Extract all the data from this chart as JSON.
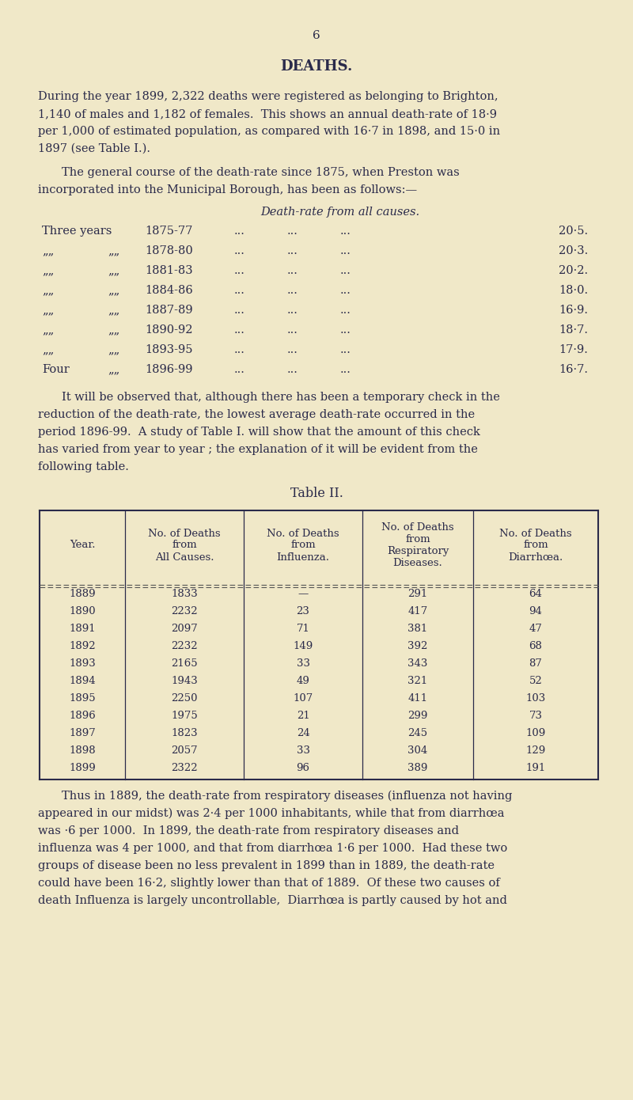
{
  "bg_color": "#f0e8c8",
  "text_color": "#2a2a4a",
  "page_number": "6",
  "title": "DEATHS.",
  "italic_header": "Death-rate from all causes.",
  "row_labels_1": [
    "Three years",
    "„„",
    "„„",
    "„„",
    "„„",
    "„„",
    "„„",
    "Four"
  ],
  "row_labels_2": [
    "",
    "„„",
    "„„",
    "„„",
    "„„",
    "„„",
    "„„",
    "„„"
  ],
  "row_periods": [
    "1875-77",
    "1878-80",
    "1881-83",
    "1884-86",
    "1887-89",
    "1890-92",
    "1893-95",
    "1896-99"
  ],
  "row_values": [
    "20·5.",
    "20·3.",
    "20·2.",
    "18·0.",
    "16·9.",
    "18·7.",
    "17·9.",
    "16·7."
  ],
  "table_title": "Table II.",
  "table_headers": [
    "Year.",
    "No. of Deaths\nfrom\nAll Causes.",
    "No. of Deaths\nfrom\nInfluenza.",
    "No. of Deaths\nfrom\nRespiratory\nDiseases.",
    "No. of Deaths\nfrom\nDiarrhœa."
  ],
  "table_data": [
    [
      "1889",
      "1833",
      "—",
      "291",
      "64"
    ],
    [
      "1890",
      "2232",
      "23",
      "417",
      "94"
    ],
    [
      "1891",
      "2097",
      "71",
      "381",
      "47"
    ],
    [
      "1892",
      "2232",
      "149",
      "392",
      "68"
    ],
    [
      "1893",
      "2165",
      "33",
      "343",
      "87"
    ],
    [
      "1894",
      "1943",
      "49",
      "321",
      "52"
    ],
    [
      "1895",
      "2250",
      "107",
      "411",
      "103"
    ],
    [
      "1896",
      "1975",
      "21",
      "299",
      "73"
    ],
    [
      "1897",
      "1823",
      "24",
      "245",
      "109"
    ],
    [
      "1898",
      "2057",
      "33",
      "304",
      "129"
    ],
    [
      "1899",
      "2322",
      "96",
      "389",
      "191"
    ]
  ],
  "para1_lines": [
    "During the year 1899, 2,322 deaths were registered as belonging to Brighton,",
    "1,140 of males and 1,182 of females.  This shows an annual death-rate of 18·9",
    "per 1,000 of estimated population, as compared with 16·7 in 1898, and 15·0 in",
    "1897 (see Table I.)."
  ],
  "para2_lines": [
    "The general course of the death-rate since 1875, when Preston was",
    "incorporated into the Municipal Borough, has been as follows:—"
  ],
  "para3_lines": [
    "It will be observed that, although there has been a temporary check in the",
    "reduction of the death-rate, the lowest average death-rate occurred in the",
    "period 1896-99.  A study of Table I. will show that the amount of this check",
    "has varied from year to year ; the explanation of it will be evident from the",
    "following table."
  ],
  "para4_lines": [
    "Thus in 1889, the death-rate from respiratory diseases (influenza not having",
    "appeared in our midst) was 2·4 per 1000 inhabitants, while that from diarrhœa",
    "was ·6 per 1000.  In 1899, the death-rate from respiratory diseases and",
    "influenza was 4 per 1000, and that from diarrhœa 1·6 per 1000.  Had these two",
    "groups of disease been no less prevalent in 1899 than in 1889, the death-rate",
    "could have been 16·2, slightly lower than that of 1889.  Of these two causes of",
    "death Influenza is largely uncontrollable,  Diarrhœa is partly caused by hot and"
  ]
}
